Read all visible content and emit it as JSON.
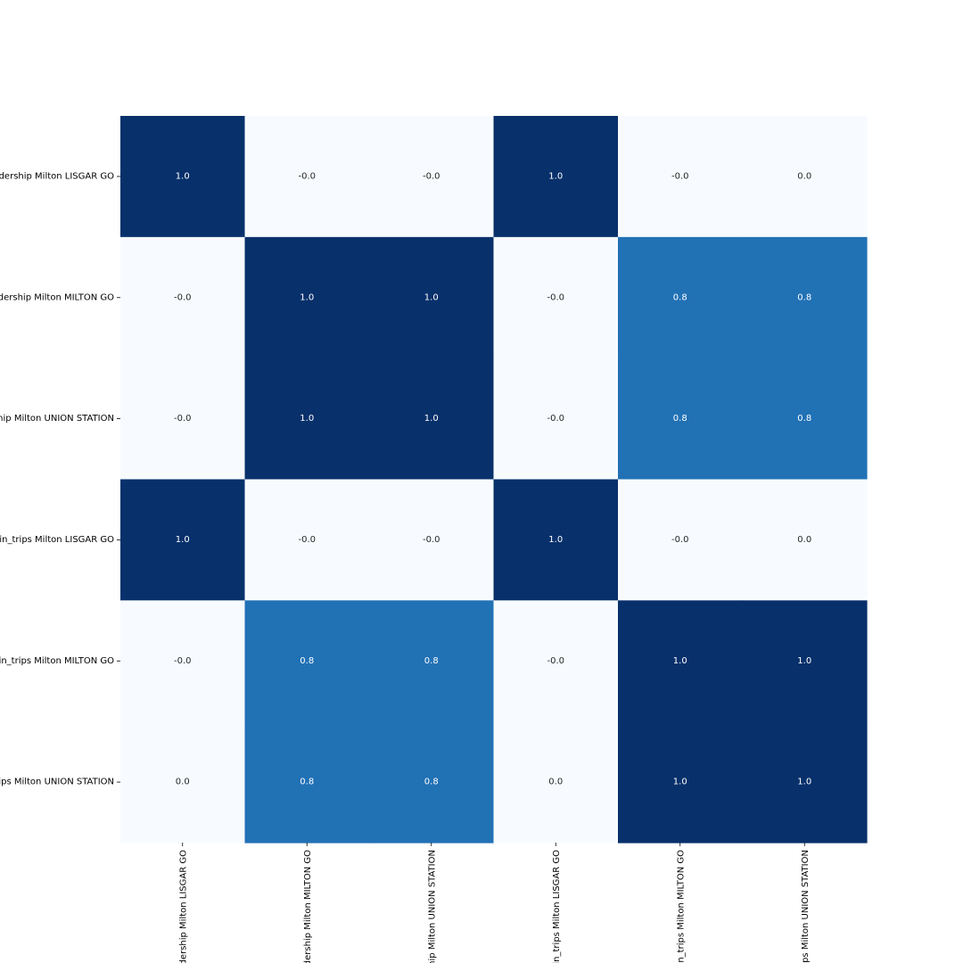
{
  "chart_data": {
    "type": "heatmap",
    "title": "",
    "xlabel": "",
    "ylabel": "",
    "colormap": "Blues",
    "vmin": 0.0,
    "vmax": 1.0,
    "colorbar": false,
    "grid": false,
    "value_format": "one decimal",
    "colors": {
      "low": "#f7fbff",
      "mid": "#2171b5",
      "high": "#08306b",
      "text_light": "#ffffff",
      "text_dark": "#262626",
      "tick": "#000000"
    },
    "x_tick_labels": [
      "dership Milton LISGAR GO",
      "dership Milton MILTON GO",
      "hip Milton UNION STATION",
      "in_trips Milton LISGAR GO",
      "in_trips Milton MILTON GO",
      "ps Milton UNION STATION"
    ],
    "y_tick_labels": [
      "dership Milton LISGAR GO",
      "dership Milton MILTON GO",
      "hip Milton UNION STATION",
      "in_trips Milton LISGAR GO",
      "in_trips Milton MILTON GO",
      "ips Milton UNION STATION"
    ],
    "matrix": [
      [
        1.0,
        -0.0,
        -0.0,
        1.0,
        -0.0,
        0.0
      ],
      [
        -0.0,
        1.0,
        1.0,
        -0.0,
        0.8,
        0.8
      ],
      [
        -0.0,
        1.0,
        1.0,
        -0.0,
        0.8,
        0.8
      ],
      [
        1.0,
        -0.0,
        -0.0,
        1.0,
        -0.0,
        0.0
      ],
      [
        -0.0,
        0.8,
        0.8,
        -0.0,
        1.0,
        1.0
      ],
      [
        0.0,
        0.8,
        0.8,
        0.0,
        1.0,
        1.0
      ]
    ],
    "cell_labels": [
      [
        "1.0",
        "-0.0",
        "-0.0",
        "1.0",
        "-0.0",
        "0.0"
      ],
      [
        "-0.0",
        "1.0",
        "1.0",
        "-0.0",
        "0.8",
        "0.8"
      ],
      [
        "-0.0",
        "1.0",
        "1.0",
        "-0.0",
        "0.8",
        "0.8"
      ],
      [
        "1.0",
        "-0.0",
        "-0.0",
        "1.0",
        "-0.0",
        "0.0"
      ],
      [
        "-0.0",
        "0.8",
        "0.8",
        "-0.0",
        "1.0",
        "1.0"
      ],
      [
        "0.0",
        "0.8",
        "0.8",
        "0.0",
        "1.0",
        "1.0"
      ]
    ]
  }
}
